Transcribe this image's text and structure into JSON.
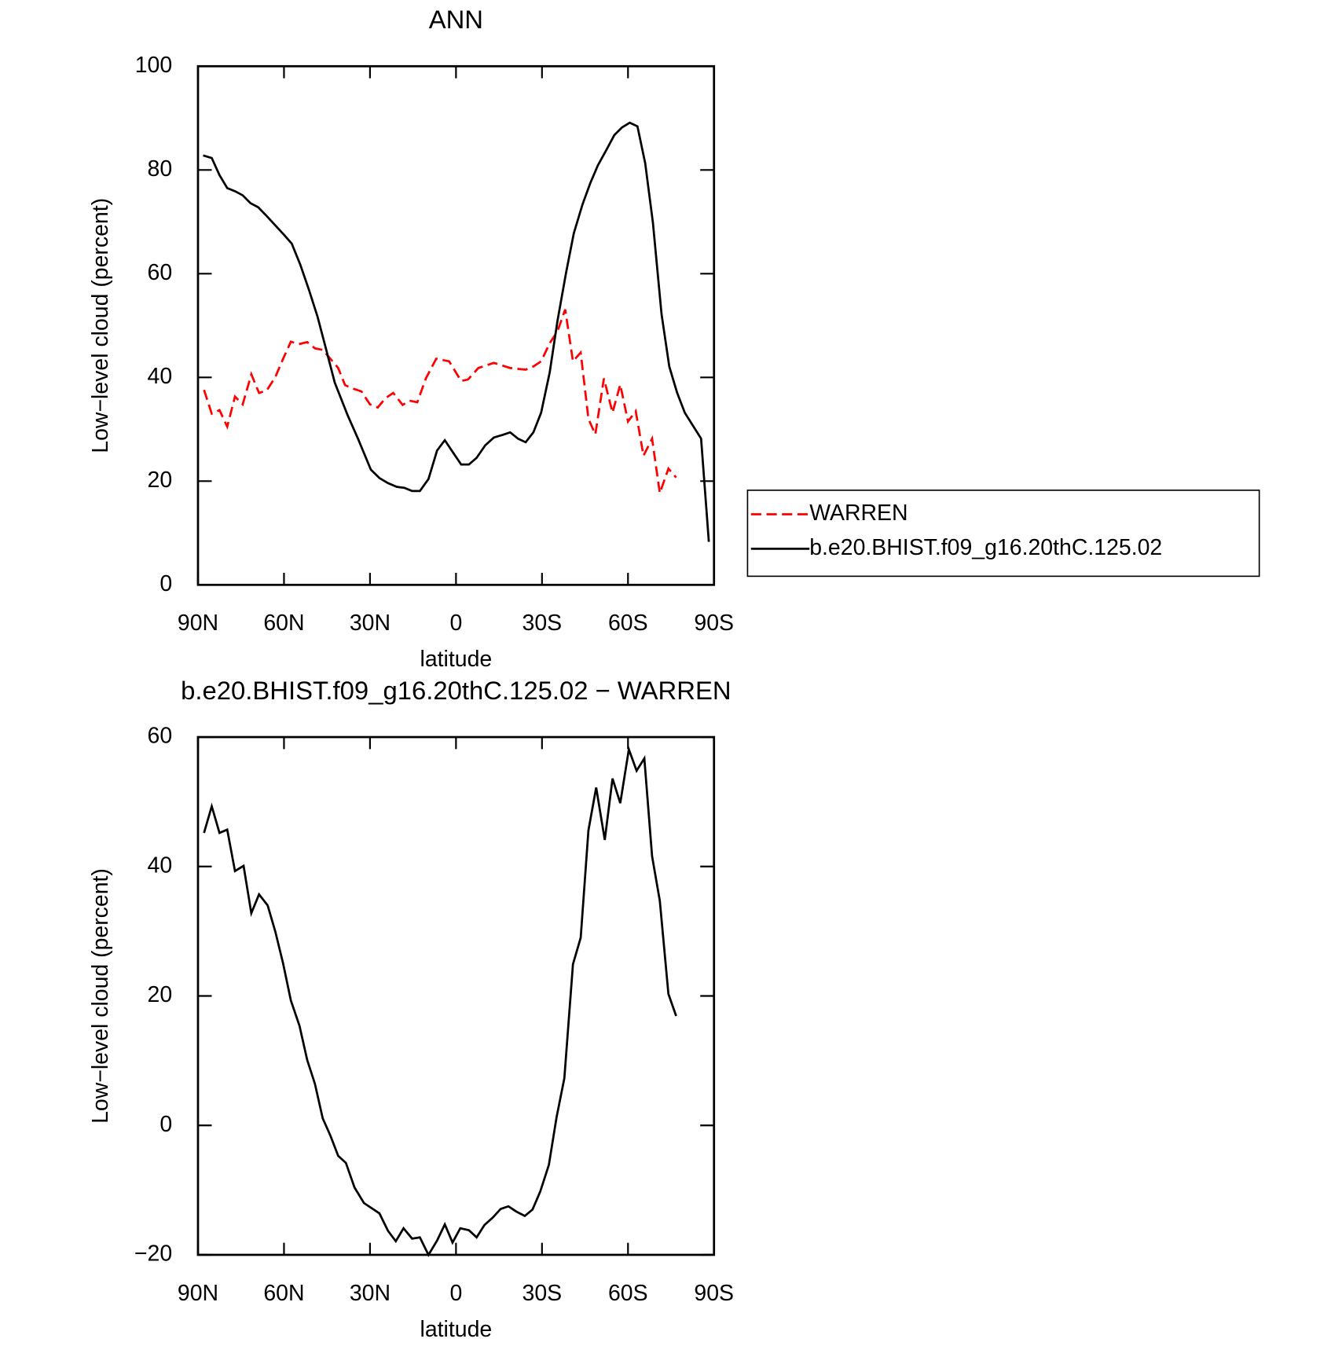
{
  "chart_data": [
    {
      "type": "line",
      "title": "ANN",
      "xlabel": "latitude",
      "ylabel": "Low−level cloud (percent)",
      "xlim": [
        90,
        -90
      ],
      "xticks": [
        {
          "value": 90,
          "label": "90N"
        },
        {
          "value": 60,
          "label": "60N"
        },
        {
          "value": 30,
          "label": "30N"
        },
        0,
        {
          "value": -30,
          "label": "30S"
        },
        {
          "value": -60,
          "label": "60S"
        },
        {
          "value": -90,
          "label": "90S"
        }
      ],
      "ylim": [
        0,
        100
      ],
      "yticks": [
        0,
        20,
        40,
        60,
        80,
        100
      ],
      "legend": "right",
      "series": [
        {
          "name": "WARREN",
          "color": "#ff0000",
          "line_style": "dashed",
          "x": [
            87.9,
            85.2,
            82.5,
            79.8,
            77.1,
            74.4,
            71.4,
            68.7,
            66,
            63,
            60.3,
            57.6,
            54.9,
            51.9,
            49.2,
            46.5,
            43.5,
            41.1,
            38.7,
            35.7,
            33,
            30,
            27.3,
            24.6,
            21.9,
            18.6,
            16.2,
            13.5,
            10.5,
            6.9,
            2.4,
            -1.8,
            -4.2,
            -7.8,
            -13.2,
            -18.9,
            -24.3,
            -27,
            -29.7,
            -32.7,
            -35.4,
            -38.1,
            -40.8,
            -43.5,
            -46.2,
            -48.6,
            -51.6,
            -54.6,
            -57.3,
            -60,
            -62.7,
            -65.4,
            -68.4,
            -71.1,
            -74.1,
            -76.8
          ],
          "values": [
            37.6,
            33.0,
            33.7,
            30.5,
            36.3,
            34.8,
            40.6,
            37.0,
            37.5,
            40.1,
            43.6,
            46.9,
            46.4,
            46.8,
            45.6,
            45.3,
            43.4,
            41.8,
            38.5,
            37.8,
            37.3,
            34.8,
            34.2,
            36.0,
            37.0,
            34.7,
            35.5,
            35.2,
            39.8,
            43.6,
            43.1,
            39.3,
            39.6,
            41.8,
            42.8,
            41.8,
            41.5,
            42.1,
            43.1,
            46.6,
            48.9,
            53.1,
            43.1,
            44.8,
            32.0,
            29.0,
            39.8,
            33.2,
            38.6,
            31.5,
            33.5,
            24.9,
            28.2,
            17.7,
            22.4,
            20.7
          ]
        },
        {
          "name": "b.e20.BHIST.f09_g16.20thC.125.02",
          "color": "#000000",
          "line_style": "solid",
          "x": [
            88.2,
            85.2,
            82.5,
            79.8,
            77.1,
            74.4,
            71.7,
            69,
            66,
            63,
            60,
            57.3,
            54.3,
            51.3,
            48.3,
            45.3,
            42.3,
            37.8,
            34.2,
            29.7,
            26.7,
            23.7,
            20.7,
            18,
            15.3,
            12.6,
            9.6,
            6.6,
            3.9,
            0.9,
            -1.8,
            -4.5,
            -7.2,
            -10.2,
            -13.2,
            -16.2,
            -18.9,
            -21.6,
            -24.3,
            -27,
            -29.7,
            -32.7,
            -35.4,
            -38.4,
            -41.1,
            -44.1,
            -46.8,
            -49.5,
            -52.5,
            -55.2,
            -57.9,
            -60.6,
            -63.3,
            -66,
            -68.7,
            -71.7,
            -74.4,
            -77.1,
            -79.8,
            -85.5,
            -88.2
          ],
          "values": [
            82.8,
            82.3,
            79.0,
            76.5,
            75.9,
            75.1,
            73.6,
            72.8,
            71.1,
            69.3,
            67.5,
            65.8,
            61.7,
            56.9,
            51.7,
            45.4,
            39.0,
            32.7,
            28.2,
            22.2,
            20.6,
            19.6,
            18.9,
            18.7,
            18.1,
            18.1,
            20.4,
            25.9,
            27.9,
            25.4,
            23.2,
            23.2,
            24.5,
            26.9,
            28.4,
            28.9,
            29.4,
            28.2,
            27.5,
            29.4,
            33.2,
            41.0,
            50.9,
            60.2,
            67.8,
            73.3,
            77.4,
            80.9,
            83.9,
            86.7,
            88.2,
            89.1,
            88.4,
            81.3,
            69.8,
            52.2,
            42.1,
            37.1,
            33.2,
            28.2,
            8.3
          ]
        }
      ]
    },
    {
      "type": "line",
      "title": "b.e20.BHIST.f09_g16.20thC.125.02 − WARREN",
      "xlabel": "latitude",
      "ylabel": "Low−level cloud (percent)",
      "xlim": [
        90,
        -90
      ],
      "xticks": [
        {
          "value": 90,
          "label": "90N"
        },
        {
          "value": 60,
          "label": "60N"
        },
        {
          "value": 30,
          "label": "30N"
        },
        0,
        {
          "value": -30,
          "label": "30S"
        },
        {
          "value": -60,
          "label": "60S"
        },
        {
          "value": -90,
          "label": "90S"
        }
      ],
      "ylim": [
        -20,
        60
      ],
      "yticks": [
        {
          "value": -20,
          "label": "−20"
        },
        0,
        20,
        40,
        60
      ],
      "series": [
        {
          "color": "#000000",
          "line_style": "solid",
          "x": [
            87.9,
            85.2,
            82.5,
            79.8,
            77.1,
            74.1,
            71.4,
            68.7,
            65.7,
            63,
            60.3,
            57.6,
            54.6,
            51.9,
            49.2,
            46.5,
            43.8,
            41.1,
            38.4,
            35.4,
            32.1,
            26.7,
            23.7,
            21,
            18.3,
            15.3,
            12.6,
            9.6,
            6.6,
            3.9,
            1.2,
            -1.5,
            -4.5,
            -7.2,
            -9.9,
            -12.9,
            -15.6,
            -18.3,
            -21,
            -24,
            -26.7,
            -29.4,
            -32.4,
            -35.1,
            -37.8,
            -40.8,
            -43.5,
            -46.2,
            -48.9,
            -51.9,
            -54.6,
            -57.3,
            -60.3,
            -63,
            -65.7,
            -68.4,
            -71.1,
            -74.1,
            -76.8
          ],
          "values": [
            45.2,
            49.3,
            45.2,
            45.7,
            39.3,
            40.1,
            32.8,
            35.7,
            34.0,
            29.9,
            25.0,
            19.3,
            15.4,
            10.1,
            6.4,
            1.1,
            -1.6,
            -4.7,
            -5.8,
            -9.6,
            -12.0,
            -13.6,
            -16.3,
            -17.9,
            -15.9,
            -17.5,
            -17.3,
            -20.0,
            -17.8,
            -15.3,
            -18.1,
            -15.9,
            -16.2,
            -17.3,
            -15.4,
            -14.2,
            -12.9,
            -12.5,
            -13.3,
            -14.0,
            -13.0,
            -10.2,
            -6.1,
            1.3,
            7.3,
            24.9,
            29.0,
            45.6,
            52.2,
            44.1,
            53.6,
            49.8,
            58.1,
            54.8,
            56.7,
            41.6,
            34.7,
            20.3,
            16.9
          ]
        }
      ]
    }
  ]
}
